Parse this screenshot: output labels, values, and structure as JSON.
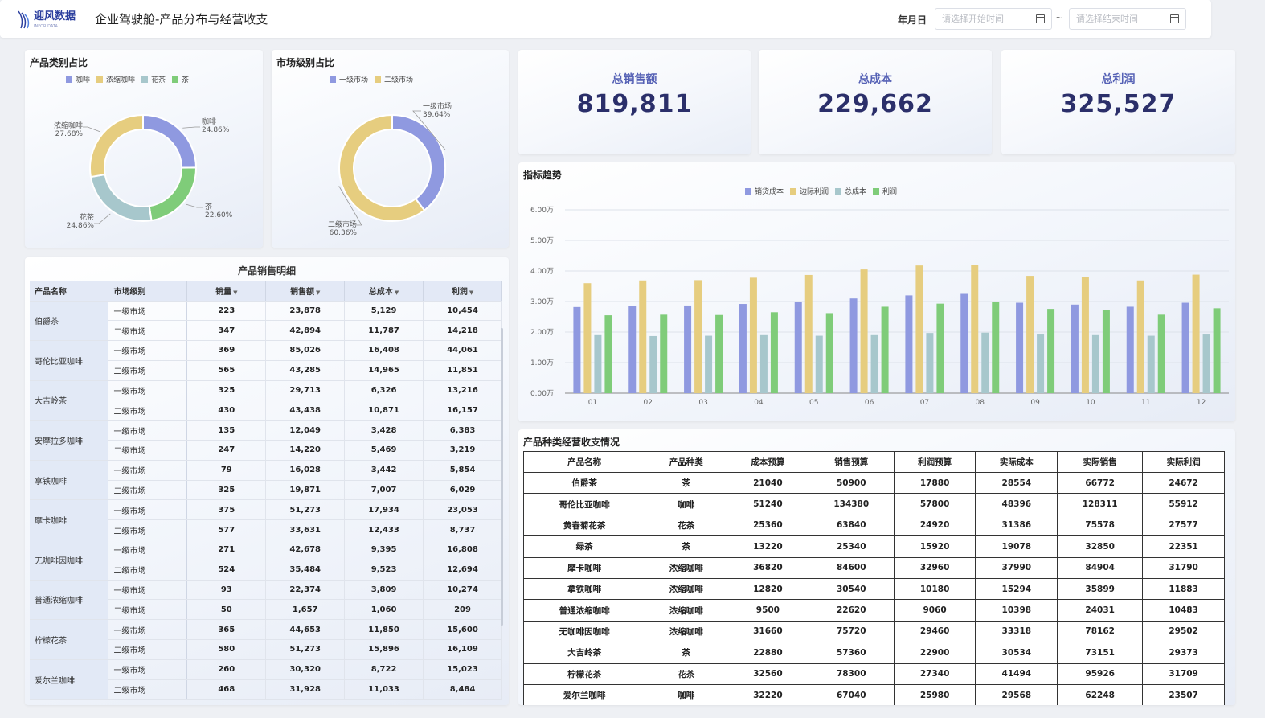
{
  "header": {
    "logo_text": "迎风数据",
    "logo_sub": "INFOR DATA",
    "title": "企业驾驶舱-产品分布与经营收支",
    "date_label": "年月日",
    "start_placeholder": "请选择开始时间",
    "end_placeholder": "请选择结束时间",
    "separator": "~",
    "calendar_icon": "calendar-icon"
  },
  "product_pie": {
    "title": "产品类别占比",
    "legend": [
      "咖啡",
      "浓缩咖啡",
      "花茶",
      "茶"
    ],
    "slices": [
      {
        "name": "咖啡",
        "pct": "24.86%",
        "value": 24.86,
        "color": "#8f99e0"
      },
      {
        "name": "茶",
        "pct": "22.60%",
        "value": 22.6,
        "color": "#7fcc79"
      },
      {
        "name": "花茶",
        "pct": "24.86%",
        "value": 24.86,
        "color": "#a7c7cc"
      },
      {
        "name": "浓缩咖啡",
        "pct": "27.68%",
        "value": 27.68,
        "color": "#e6cd7f"
      }
    ]
  },
  "market_pie": {
    "title": "市场级别占比",
    "legend": [
      "一级市场",
      "二级市场"
    ],
    "slices": [
      {
        "name": "一级市场",
        "pct": "39.64%",
        "value": 39.64,
        "color": "#8f99e0"
      },
      {
        "name": "二级市场",
        "pct": "60.36%",
        "value": 60.36,
        "color": "#e6cd7f"
      }
    ]
  },
  "kpis": [
    {
      "label": "总销售额",
      "value": "819,811"
    },
    {
      "label": "总成本",
      "value": "229,662"
    },
    {
      "label": "总利润",
      "value": "325,527"
    }
  ],
  "chart_data": {
    "type": "bar",
    "title": "指标趋势",
    "categories": [
      "01",
      "02",
      "03",
      "04",
      "05",
      "06",
      "07",
      "08",
      "09",
      "10",
      "11",
      "12"
    ],
    "ylim": [
      0,
      60000
    ],
    "yticks": [
      "0.00万",
      "1.00万",
      "2.00万",
      "3.00万",
      "4.00万",
      "5.00万",
      "6.00万"
    ],
    "series": [
      {
        "name": "销货成本",
        "color": "#8f99e0",
        "values": [
          28200,
          28500,
          28700,
          29200,
          29800,
          31000,
          32000,
          32500,
          29600,
          29000,
          28300,
          29600
        ]
      },
      {
        "name": "边际利润",
        "color": "#e6cd7f",
        "values": [
          36000,
          36900,
          37000,
          37800,
          38700,
          40500,
          41800,
          42000,
          38400,
          37900,
          36900,
          38800
        ]
      },
      {
        "name": "总成本",
        "color": "#a7c7cc",
        "values": [
          19000,
          18700,
          18800,
          19000,
          18800,
          19000,
          19700,
          19800,
          19200,
          19000,
          18800,
          19200
        ]
      },
      {
        "name": "利润",
        "color": "#7fcc79",
        "values": [
          25500,
          25700,
          25600,
          26500,
          26200,
          28300,
          29300,
          30000,
          27600,
          27300,
          25700,
          27800
        ]
      }
    ],
    "grid": true,
    "legend_position": "top-center"
  },
  "detail_table": {
    "title": "产品销售明细",
    "columns": [
      "产品名称",
      "市场级别",
      "销量",
      "销售额",
      "总成本",
      "利润"
    ],
    "products": [
      {
        "name": "伯爵茶",
        "rows": [
          [
            "一级市场",
            "223",
            "23,878",
            "5,129",
            "10,454"
          ],
          [
            "二级市场",
            "347",
            "42,894",
            "11,787",
            "14,218"
          ]
        ]
      },
      {
        "name": "哥伦比亚咖啡",
        "rows": [
          [
            "一级市场",
            "369",
            "85,026",
            "16,408",
            "44,061"
          ],
          [
            "二级市场",
            "565",
            "43,285",
            "14,965",
            "11,851"
          ]
        ]
      },
      {
        "name": "大吉岭茶",
        "rows": [
          [
            "一级市场",
            "325",
            "29,713",
            "6,326",
            "13,216"
          ],
          [
            "二级市场",
            "430",
            "43,438",
            "10,871",
            "16,157"
          ]
        ]
      },
      {
        "name": "安摩拉多咖啡",
        "rows": [
          [
            "一级市场",
            "135",
            "12,049",
            "3,428",
            "6,383"
          ],
          [
            "二级市场",
            "247",
            "14,220",
            "5,469",
            "3,219"
          ]
        ]
      },
      {
        "name": "拿铁咖啡",
        "rows": [
          [
            "一级市场",
            "79",
            "16,028",
            "3,442",
            "5,854"
          ],
          [
            "二级市场",
            "325",
            "19,871",
            "7,007",
            "6,029"
          ]
        ]
      },
      {
        "name": "摩卡咖啡",
        "rows": [
          [
            "一级市场",
            "375",
            "51,273",
            "17,934",
            "23,053"
          ],
          [
            "二级市场",
            "577",
            "33,631",
            "12,433",
            "8,737"
          ]
        ]
      },
      {
        "name": "无咖啡因咖啡",
        "rows": [
          [
            "一级市场",
            "271",
            "42,678",
            "9,395",
            "16,808"
          ],
          [
            "二级市场",
            "524",
            "35,484",
            "9,523",
            "12,694"
          ]
        ]
      },
      {
        "name": "普通浓缩咖啡",
        "rows": [
          [
            "一级市场",
            "93",
            "22,374",
            "3,809",
            "10,274"
          ],
          [
            "二级市场",
            "50",
            "1,657",
            "1,060",
            "209"
          ]
        ]
      },
      {
        "name": "柠檬花茶",
        "rows": [
          [
            "一级市场",
            "365",
            "44,653",
            "11,850",
            "15,600"
          ],
          [
            "二级市场",
            "580",
            "51,273",
            "15,896",
            "16,109"
          ]
        ]
      },
      {
        "name": "爱尔兰咖啡",
        "rows": [
          [
            "一级市场",
            "260",
            "30,320",
            "8,722",
            "15,023"
          ],
          [
            "二级市场",
            "468",
            "31,928",
            "11,033",
            "8,484"
          ]
        ]
      }
    ]
  },
  "budget_table": {
    "title": "产品种类经营收支情况",
    "columns": [
      "产品名称",
      "产品种类",
      "成本预算",
      "销售预算",
      "利润预算",
      "实际成本",
      "实际销售",
      "实际利润"
    ],
    "rows": [
      [
        "伯爵茶",
        "茶",
        "21040",
        "50900",
        "17880",
        "28554",
        "66772",
        "24672"
      ],
      [
        "哥伦比亚咖啡",
        "咖啡",
        "51240",
        "134380",
        "57800",
        "48396",
        "128311",
        "55912"
      ],
      [
        "黄春菊花茶",
        "花茶",
        "25360",
        "63840",
        "24920",
        "31386",
        "75578",
        "27577"
      ],
      [
        "绿茶",
        "茶",
        "13220",
        "25340",
        "15920",
        "19078",
        "32850",
        "22351"
      ],
      [
        "摩卡咖啡",
        "浓缩咖啡",
        "36820",
        "84600",
        "32960",
        "37990",
        "84904",
        "31790"
      ],
      [
        "拿铁咖啡",
        "浓缩咖啡",
        "12820",
        "30540",
        "10180",
        "15294",
        "35899",
        "11883"
      ],
      [
        "普通浓缩咖啡",
        "浓缩咖啡",
        "9500",
        "22620",
        "9060",
        "10398",
        "24031",
        "10483"
      ],
      [
        "无咖啡因咖啡",
        "浓缩咖啡",
        "31660",
        "75720",
        "29460",
        "33318",
        "78162",
        "29502"
      ],
      [
        "大吉岭茶",
        "茶",
        "22880",
        "57360",
        "22900",
        "30534",
        "73151",
        "29373"
      ],
      [
        "柠檬花茶",
        "花茶",
        "32560",
        "78300",
        "27340",
        "41494",
        "95926",
        "31709"
      ],
      [
        "爱尔兰咖啡",
        "咖啡",
        "32220",
        "67040",
        "25980",
        "29568",
        "62248",
        "23507"
      ]
    ]
  }
}
